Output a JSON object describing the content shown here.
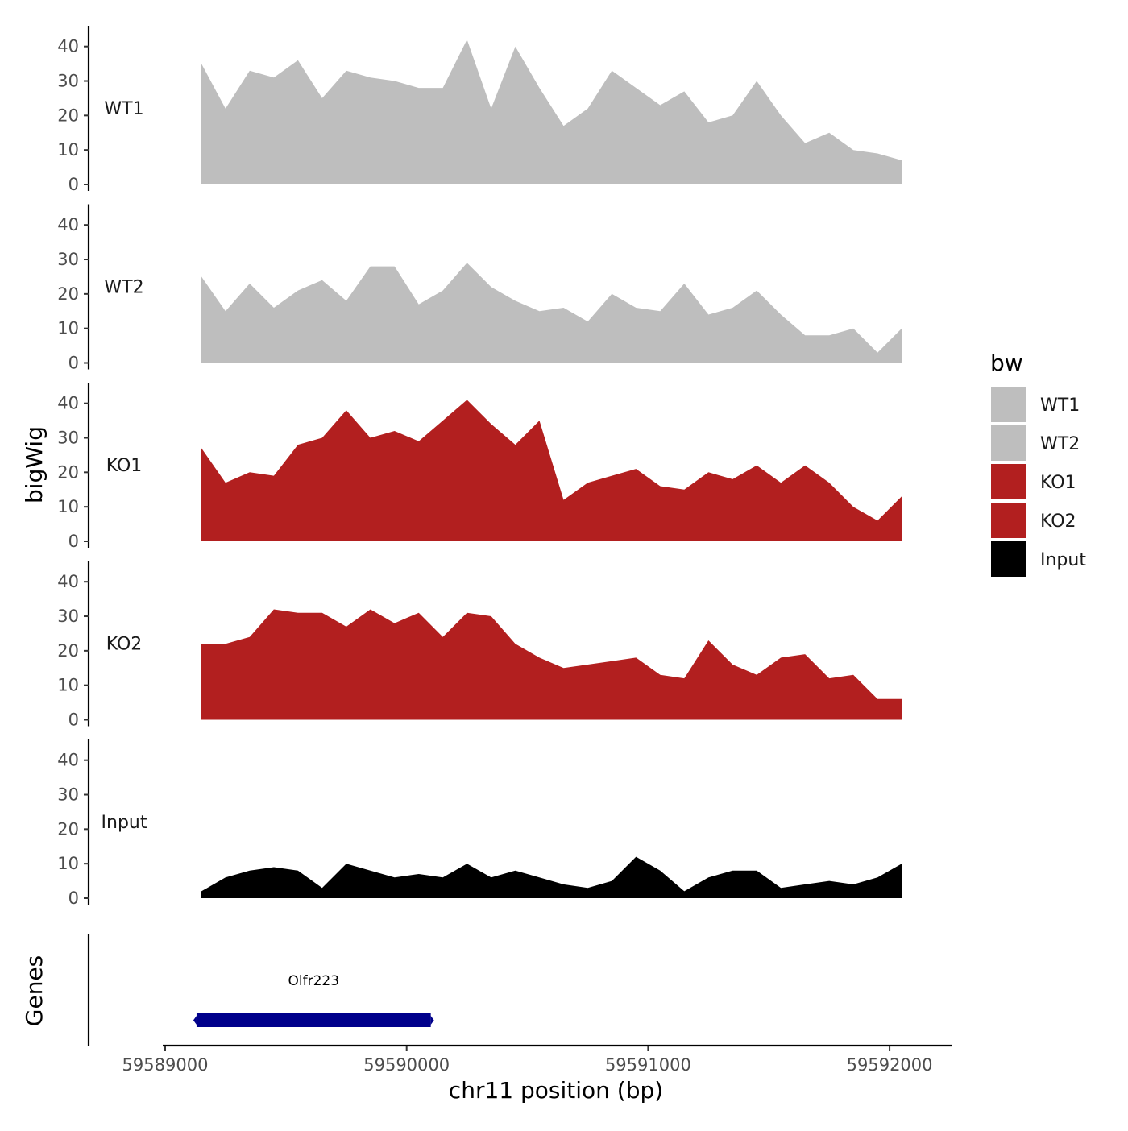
{
  "chart_data": {
    "type": "area",
    "ylabel": "bigWig",
    "xlabel": "chr11 position (bp)",
    "genes_label": "Genes",
    "ylim": [
      0,
      46
    ],
    "y_ticks": [
      0,
      10,
      20,
      30,
      40
    ],
    "xlim": [
      59588990,
      59592260
    ],
    "x_ticks": [
      59589000,
      59590000,
      59591000,
      59592000
    ],
    "x_tick_labels": [
      "59589000",
      "59590000",
      "59591000",
      "59592000"
    ],
    "grid": false,
    "legend": {
      "title": "bw",
      "placement": "right",
      "entries": [
        {
          "label": "WT1",
          "color": "#bebebe"
        },
        {
          "label": "WT2",
          "color": "#bebebe"
        },
        {
          "label": "KO1",
          "color": "#b21f1f"
        },
        {
          "label": "KO2",
          "color": "#b21f1f"
        },
        {
          "label": "Input",
          "color": "#000000"
        }
      ]
    },
    "x": [
      59589150,
      59589250,
      59589350,
      59589450,
      59589550,
      59589650,
      59589750,
      59589850,
      59589950,
      59590050,
      59590150,
      59590250,
      59590350,
      59590450,
      59590550,
      59590650,
      59590750,
      59590850,
      59590950,
      59591050,
      59591150,
      59591250,
      59591350,
      59591450,
      59591550,
      59591650,
      59591750,
      59591850,
      59591950,
      59592050
    ],
    "series": [
      {
        "name": "WT1",
        "color": "#bebebe",
        "values": [
          35,
          22,
          33,
          31,
          36,
          25,
          33,
          31,
          30,
          28,
          28,
          42,
          22,
          40,
          28,
          17,
          22,
          33,
          28,
          23,
          27,
          18,
          20,
          30,
          20,
          12,
          15,
          10,
          9,
          7
        ]
      },
      {
        "name": "WT2",
        "color": "#bebebe",
        "values": [
          25,
          15,
          23,
          16,
          21,
          24,
          18,
          28,
          28,
          17,
          21,
          29,
          22,
          18,
          15,
          16,
          12,
          20,
          16,
          15,
          23,
          14,
          16,
          21,
          14,
          8,
          8,
          10,
          3,
          10
        ]
      },
      {
        "name": "KO1",
        "color": "#b21f1f",
        "values": [
          27,
          17,
          20,
          19,
          28,
          30,
          38,
          30,
          32,
          29,
          35,
          41,
          34,
          28,
          35,
          12,
          17,
          19,
          21,
          16,
          15,
          20,
          18,
          22,
          17,
          22,
          17,
          10,
          6,
          13
        ]
      },
      {
        "name": "KO2",
        "color": "#b21f1f",
        "values": [
          22,
          22,
          24,
          32,
          31,
          31,
          27,
          32,
          28,
          31,
          24,
          31,
          30,
          22,
          18,
          15,
          16,
          17,
          18,
          13,
          12,
          23,
          16,
          13,
          18,
          19,
          12,
          13,
          6,
          6
        ]
      },
      {
        "name": "Input",
        "color": "#000000",
        "values": [
          2,
          6,
          8,
          9,
          8,
          3,
          10,
          8,
          6,
          7,
          6,
          10,
          6,
          8,
          6,
          4,
          3,
          5,
          12,
          8,
          2,
          6,
          8,
          8,
          3,
          4,
          5,
          4,
          6,
          10
        ]
      }
    ],
    "genes": [
      {
        "name": "Olfr223",
        "start": 59589130,
        "end": 59590100,
        "color": "#00008b"
      }
    ]
  }
}
